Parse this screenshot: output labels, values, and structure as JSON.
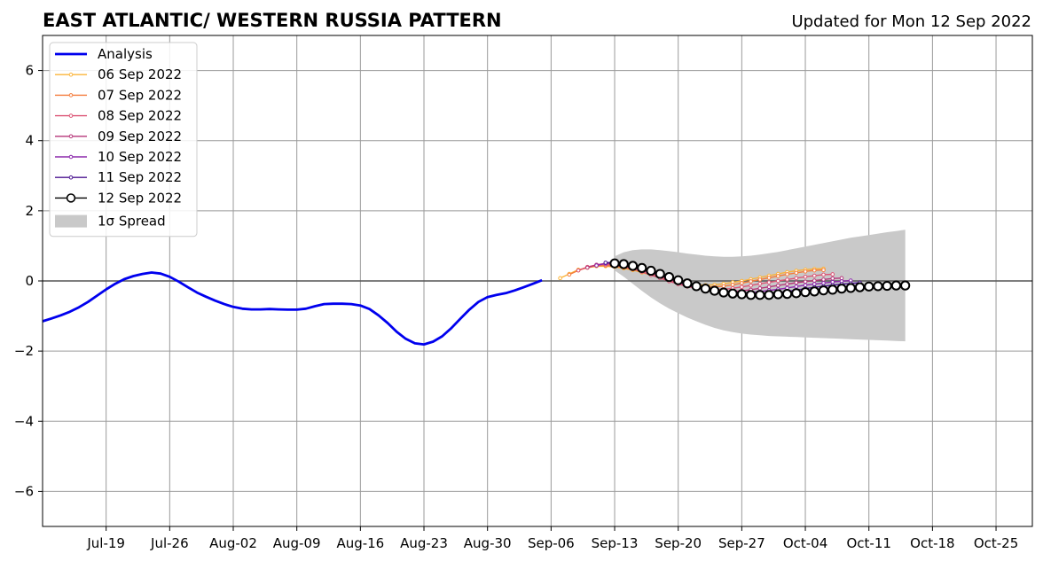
{
  "title_left": "EAST ATLANTIC/ WESTERN RUSSIA PATTERN",
  "title_right": "Updated for Mon 12 Sep 2022",
  "chart_data": {
    "type": "line",
    "title": "EAST ATLANTIC/ WESTERN RUSSIA PATTERN",
    "subtitle": "Updated for Mon 12 Sep 2022",
    "xlim": [
      "2022-07-12",
      "2022-10-29"
    ],
    "ylim": [
      -7,
      7
    ],
    "grid": true,
    "legend_position": "upper left",
    "x_ticks": [
      {
        "date": "2022-07-19",
        "label": "Jul-19"
      },
      {
        "date": "2022-07-26",
        "label": "Jul-26"
      },
      {
        "date": "2022-08-02",
        "label": "Aug-02"
      },
      {
        "date": "2022-08-09",
        "label": "Aug-09"
      },
      {
        "date": "2022-08-16",
        "label": "Aug-16"
      },
      {
        "date": "2022-08-23",
        "label": "Aug-23"
      },
      {
        "date": "2022-08-30",
        "label": "Aug-30"
      },
      {
        "date": "2022-09-06",
        "label": "Sep-06"
      },
      {
        "date": "2022-09-13",
        "label": "Sep-13"
      },
      {
        "date": "2022-09-20",
        "label": "Sep-20"
      },
      {
        "date": "2022-09-27",
        "label": "Sep-27"
      },
      {
        "date": "2022-10-04",
        "label": "Oct-04"
      },
      {
        "date": "2022-10-11",
        "label": "Oct-11"
      },
      {
        "date": "2022-10-18",
        "label": "Oct-18"
      },
      {
        "date": "2022-10-25",
        "label": "Oct-25"
      }
    ],
    "y_ticks": [
      {
        "value": 6,
        "label": "6"
      },
      {
        "value": 4,
        "label": "4"
      },
      {
        "value": 2,
        "label": "2"
      },
      {
        "value": 0,
        "label": "0"
      },
      {
        "value": -2,
        "label": "−2"
      },
      {
        "value": -4,
        "label": "−4"
      },
      {
        "value": -6,
        "label": "−6"
      }
    ],
    "series": [
      {
        "name": "Analysis",
        "color": "#0000ee",
        "marker": "none",
        "start_date": "2022-07-12",
        "values": [
          -1.15,
          -1.07,
          -0.98,
          -0.88,
          -0.75,
          -0.6,
          -0.42,
          -0.24,
          -0.08,
          0.05,
          0.14,
          0.2,
          0.24,
          0.21,
          0.12,
          -0.02,
          -0.18,
          -0.33,
          -0.45,
          -0.56,
          -0.66,
          -0.74,
          -0.79,
          -0.81,
          -0.81,
          -0.8,
          -0.81,
          -0.82,
          -0.82,
          -0.79,
          -0.72,
          -0.66,
          -0.65,
          -0.65,
          -0.66,
          -0.7,
          -0.8,
          -0.98,
          -1.2,
          -1.45,
          -1.65,
          -1.78,
          -1.81,
          -1.73,
          -1.58,
          -1.35,
          -1.08,
          -0.82,
          -0.6,
          -0.46,
          -0.4,
          -0.35,
          -0.27,
          -0.18,
          -0.08,
          0.02
        ]
      },
      {
        "name": "06 Sep 2022",
        "color": "#fbb43a",
        "marker": "small-dot",
        "start_date": "2022-09-07",
        "values": [
          0.08,
          0.2,
          0.32,
          0.38,
          0.42,
          0.42,
          0.4,
          0.36,
          0.31,
          0.24,
          0.17,
          0.1,
          0.03,
          -0.03,
          -0.08,
          -0.11,
          -0.12,
          -0.11,
          -0.08,
          -0.04,
          0.0,
          0.05,
          0.1,
          0.15,
          0.2,
          0.25,
          0.29,
          0.32,
          0.34,
          0.35
        ]
      },
      {
        "name": "07 Sep 2022",
        "color": "#f47c3c",
        "marker": "small-dot",
        "start_date": "2022-09-08",
        "values": [
          0.18,
          0.3,
          0.38,
          0.43,
          0.44,
          0.42,
          0.38,
          0.33,
          0.26,
          0.18,
          0.1,
          0.02,
          -0.05,
          -0.11,
          -0.15,
          -0.17,
          -0.17,
          -0.15,
          -0.11,
          -0.06,
          -0.01,
          0.04,
          0.09,
          0.14,
          0.19,
          0.23,
          0.27,
          0.3,
          0.31
        ]
      },
      {
        "name": "08 Sep 2022",
        "color": "#dc5475",
        "marker": "small-dot",
        "start_date": "2022-09-09",
        "values": [
          0.3,
          0.4,
          0.46,
          0.47,
          0.45,
          0.4,
          0.34,
          0.26,
          0.17,
          0.08,
          -0.01,
          -0.09,
          -0.16,
          -0.21,
          -0.24,
          -0.25,
          -0.24,
          -0.21,
          -0.17,
          -0.13,
          -0.08,
          -0.04,
          0.0,
          0.04,
          0.08,
          0.12,
          0.15,
          0.18,
          0.19
        ]
      },
      {
        "name": "09 Sep 2022",
        "color": "#b63679",
        "marker": "small-dot",
        "start_date": "2022-09-10",
        "values": [
          0.38,
          0.46,
          0.5,
          0.49,
          0.45,
          0.39,
          0.31,
          0.22,
          0.13,
          0.04,
          -0.05,
          -0.13,
          -0.2,
          -0.25,
          -0.28,
          -0.3,
          -0.3,
          -0.28,
          -0.25,
          -0.21,
          -0.17,
          -0.13,
          -0.09,
          -0.05,
          -0.02,
          0.01,
          0.04,
          0.07,
          0.08
        ]
      },
      {
        "name": "10 Sep 2022",
        "color": "#8c29ac",
        "marker": "small-dot",
        "start_date": "2022-09-11",
        "values": [
          0.44,
          0.5,
          0.52,
          0.49,
          0.43,
          0.35,
          0.26,
          0.17,
          0.08,
          -0.01,
          -0.1,
          -0.18,
          -0.24,
          -0.29,
          -0.32,
          -0.34,
          -0.34,
          -0.33,
          -0.3,
          -0.27,
          -0.24,
          -0.2,
          -0.16,
          -0.12,
          -0.09,
          -0.06,
          -0.03,
          -0.01,
          0.01
        ]
      },
      {
        "name": "11 Sep 2022",
        "color": "#4b1590",
        "marker": "small-dot",
        "start_date": "2022-09-12",
        "values": [
          0.52,
          0.53,
          0.5,
          0.44,
          0.36,
          0.27,
          0.17,
          0.08,
          -0.02,
          -0.11,
          -0.19,
          -0.26,
          -0.31,
          -0.35,
          -0.38,
          -0.39,
          -0.39,
          -0.38,
          -0.36,
          -0.33,
          -0.3,
          -0.26,
          -0.22,
          -0.18,
          -0.15,
          -0.12,
          -0.09,
          -0.07,
          -0.05
        ]
      },
      {
        "name": "12 Sep 2022",
        "color": "#000000",
        "marker": "open-circle",
        "start_date": "2022-09-13",
        "values": [
          0.5,
          0.48,
          0.43,
          0.37,
          0.29,
          0.2,
          0.11,
          0.02,
          -0.07,
          -0.15,
          -0.22,
          -0.28,
          -0.33,
          -0.36,
          -0.38,
          -0.4,
          -0.4,
          -0.4,
          -0.38,
          -0.37,
          -0.35,
          -0.32,
          -0.3,
          -0.27,
          -0.25,
          -0.22,
          -0.2,
          -0.18,
          -0.16,
          -0.15,
          -0.14,
          -0.13,
          -0.13
        ]
      }
    ],
    "spread": {
      "name": "1σ Spread",
      "color": "#c9c9c9",
      "start_date": "2022-09-13",
      "upper": [
        0.7,
        0.82,
        0.88,
        0.9,
        0.9,
        0.88,
        0.85,
        0.82,
        0.78,
        0.75,
        0.72,
        0.7,
        0.69,
        0.69,
        0.7,
        0.72,
        0.75,
        0.79,
        0.83,
        0.88,
        0.93,
        0.98,
        1.03,
        1.08,
        1.13,
        1.18,
        1.23,
        1.27,
        1.31,
        1.35,
        1.39,
        1.42,
        1.46
      ],
      "lower": [
        0.3,
        0.12,
        -0.08,
        -0.28,
        -0.47,
        -0.64,
        -0.79,
        -0.92,
        -1.04,
        -1.15,
        -1.25,
        -1.34,
        -1.41,
        -1.46,
        -1.5,
        -1.53,
        -1.55,
        -1.57,
        -1.58,
        -1.59,
        -1.6,
        -1.61,
        -1.62,
        -1.63,
        -1.64,
        -1.65,
        -1.66,
        -1.67,
        -1.68,
        -1.69,
        -1.7,
        -1.71,
        -1.72
      ]
    }
  }
}
